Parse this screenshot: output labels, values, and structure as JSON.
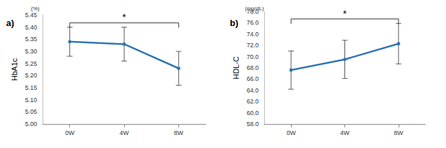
{
  "chart_data": [
    {
      "type": "line",
      "panel": "a)",
      "y_label": "HbA1c",
      "y_unit": "(%)",
      "categories": [
        "0W",
        "4W",
        "8W"
      ],
      "values": [
        5.34,
        5.33,
        5.23
      ],
      "error": [
        0.06,
        0.07,
        0.07
      ],
      "color": "#2e75b6",
      "marker": "circle",
      "grid": false,
      "ylim": [
        5.0,
        5.45
      ],
      "yticks": [
        {
          "value": 5,
          "label": "5.00"
        },
        5.05,
        {
          "value": 5.1,
          "label": "5.10"
        },
        5.15,
        {
          "value": 5.2,
          "label": "5.20"
        },
        5.25,
        {
          "value": 5.3,
          "label": "5.30"
        },
        5.35,
        {
          "value": 5.4,
          "label": "5.40"
        },
        5.45
      ],
      "annotations": [
        {
          "from": "0W",
          "to": "8W",
          "text": "*"
        }
      ]
    },
    {
      "type": "line",
      "panel": "b)",
      "y_label": "HDL-C",
      "y_unit": "(mg/dL)",
      "categories": [
        "0W",
        "4W",
        "8W"
      ],
      "values": [
        67.6,
        69.5,
        72.3
      ],
      "error": [
        3.4,
        3.4,
        3.6
      ],
      "color": "#2e75b6",
      "marker": "circle",
      "grid": false,
      "ylim": [
        58,
        78
      ],
      "yticks": [
        {
          "value": 58,
          "label": "58.0"
        },
        {
          "value": 60,
          "label": "60.0"
        },
        {
          "value": 62,
          "label": "62.0"
        },
        {
          "value": 64,
          "label": "64.0"
        },
        {
          "value": 66,
          "label": "66.0"
        },
        {
          "value": 68,
          "label": "68.0"
        },
        {
          "value": 70,
          "label": "70.0"
        },
        {
          "value": 72,
          "label": "72.0"
        },
        {
          "value": 74,
          "label": "74.0"
        },
        {
          "value": 76,
          "label": "76.0"
        },
        {
          "value": 78,
          "label": "78.0"
        }
      ],
      "annotations": [
        {
          "from": "0W",
          "to": "8W",
          "text": "*"
        }
      ]
    }
  ]
}
